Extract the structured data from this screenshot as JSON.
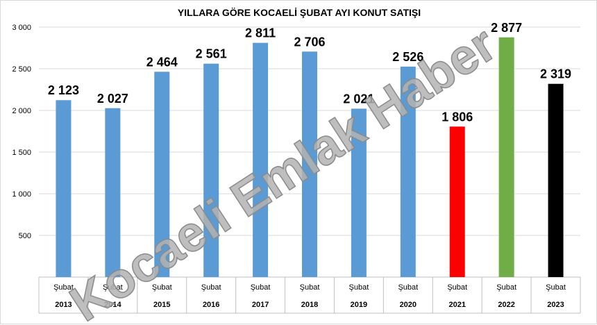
{
  "chart_data": {
    "type": "bar",
    "title": "YILLARA GÖRE KOCAELİ ŞUBAT AYI KONUT SATIŞI",
    "categories": [
      "Şubat 2013",
      "Şubat 2014",
      "Şubat 2015",
      "Şubat 2016",
      "Şubat 2017",
      "Şubat 2018",
      "Şubat 2019",
      "Şubat 2020",
      "Şubat 2021",
      "Şubat 2022",
      "Şubat 2023"
    ],
    "category_lines": [
      [
        "Şubat",
        "2013"
      ],
      [
        "Şubat",
        "2014"
      ],
      [
        "Şubat",
        "2015"
      ],
      [
        "Şubat",
        "2016"
      ],
      [
        "Şubat",
        "2017"
      ],
      [
        "Şubat",
        "2018"
      ],
      [
        "Şubat",
        "2019"
      ],
      [
        "Şubat",
        "2020"
      ],
      [
        "Şubat",
        "2021"
      ],
      [
        "Şubat",
        "2022"
      ],
      [
        "Şubat",
        "2023"
      ]
    ],
    "values": [
      2123,
      2027,
      2464,
      2561,
      2811,
      2706,
      2021,
      2526,
      1806,
      2877,
      2319
    ],
    "data_labels": [
      "2 123",
      "2 027",
      "2 464",
      "2 561",
      "2 811",
      "2 706",
      "2 021",
      "2 526",
      "1 806",
      "2 877",
      "2 319"
    ],
    "bar_colors": [
      "#5b9bd5",
      "#5b9bd5",
      "#5b9bd5",
      "#5b9bd5",
      "#5b9bd5",
      "#5b9bd5",
      "#5b9bd5",
      "#5b9bd5",
      "#ff0000",
      "#70ad47",
      "#000000"
    ],
    "ylim": [
      0,
      3000
    ],
    "yticks": [
      500,
      1000,
      1500,
      2000,
      2500,
      3000
    ],
    "ytick_labels": [
      "500",
      "1 000",
      "1 500",
      "2 000",
      "2 500",
      "3 000"
    ],
    "grid": true,
    "watermark": "Kocaeli Emlak Haber"
  }
}
